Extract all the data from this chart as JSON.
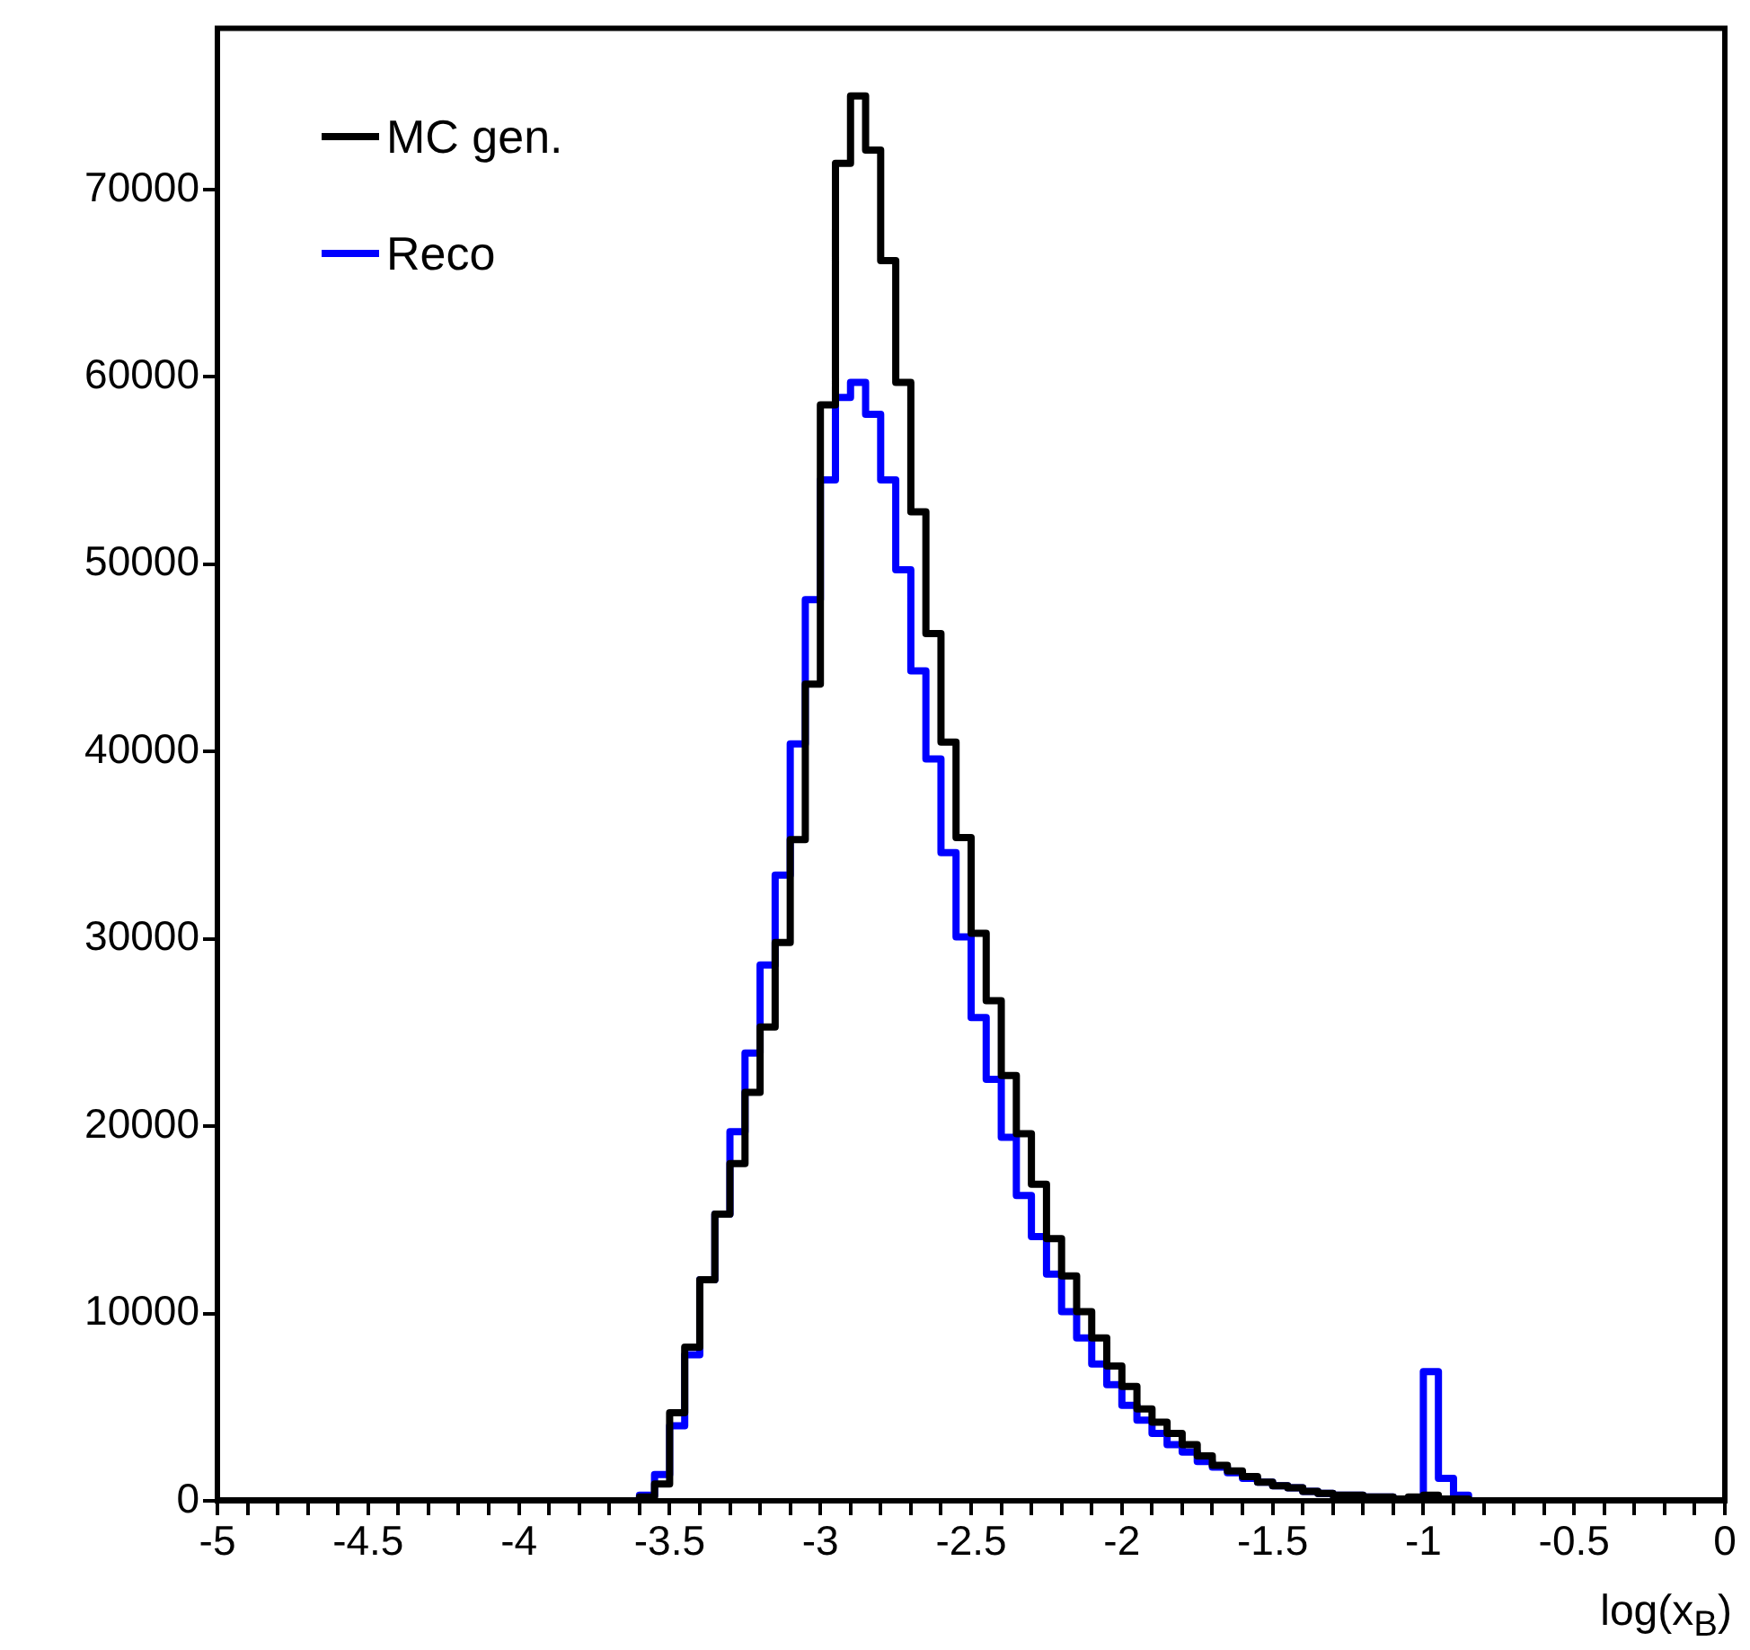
{
  "chart_data": {
    "type": "histogram",
    "xlabel": "log(x$_{B}$)",
    "bins": [
      -5,
      -4.95,
      -4.9,
      -4.85,
      -4.8,
      -4.75,
      -4.7,
      -4.65,
      -4.6,
      -4.55,
      -4.5,
      -4.45,
      -4.4,
      -4.35,
      -4.3,
      -4.25,
      -4.2,
      -4.15,
      -4.1,
      -4.05,
      -4,
      -3.95,
      -3.9,
      -3.85,
      -3.8,
      -3.75,
      -3.7,
      -3.65,
      -3.6,
      -3.55,
      -3.5,
      -3.45,
      -3.4,
      -3.35,
      -3.3,
      -3.25,
      -3.2,
      -3.15,
      -3.1,
      -3.05,
      -3,
      -2.95,
      -2.9,
      -2.85,
      -2.8,
      -2.75,
      -2.7,
      -2.65,
      -2.6,
      -2.55,
      -2.5,
      -2.45,
      -2.4,
      -2.35,
      -2.3,
      -2.25,
      -2.2,
      -2.15,
      -2.1,
      -2.05,
      -2,
      -1.95,
      -1.9,
      -1.85,
      -1.8,
      -1.75,
      -1.7,
      -1.65,
      -1.6,
      -1.55,
      -1.5,
      -1.45,
      -1.4,
      -1.35,
      -1.3,
      -1.25,
      -1.2,
      -1.15,
      -1.1,
      -1.05,
      -1,
      -0.95,
      -0.9,
      -0.85,
      -0.8,
      -0.75,
      -0.7,
      -0.65,
      -0.6,
      -0.55,
      -0.5,
      -0.45,
      -0.4,
      -0.35,
      -0.3,
      -0.25,
      -0.2,
      -0.15,
      -0.1,
      -0.05,
      0
    ],
    "series": [
      {
        "name": "MC gen.",
        "color": "#000000",
        "values": [
          0,
          0,
          0,
          0,
          0,
          0,
          0,
          0,
          0,
          0,
          0,
          0,
          0,
          0,
          0,
          0,
          0,
          0,
          0,
          0,
          0,
          0,
          0,
          0,
          0,
          0,
          0,
          0,
          200,
          900,
          4700,
          8200,
          11800,
          15300,
          18000,
          21800,
          25300,
          29800,
          35300,
          43600,
          58500,
          71400,
          75000,
          72100,
          66200,
          59700,
          52800,
          46300,
          40500,
          35400,
          30300,
          26700,
          22700,
          19600,
          16900,
          14000,
          12000,
          10100,
          8700,
          7200,
          6100,
          4900,
          4200,
          3600,
          3000,
          2400,
          1900,
          1600,
          1300,
          1000,
          800,
          700,
          500,
          400,
          300,
          300,
          200,
          200,
          100,
          200,
          300,
          100,
          100,
          0,
          0,
          0,
          0,
          0,
          0,
          0,
          0,
          0,
          0,
          0,
          0,
          0,
          0,
          0,
          0,
          0
        ]
      },
      {
        "name": "Reco",
        "color": "#0000ff",
        "values": [
          0,
          0,
          0,
          0,
          0,
          0,
          0,
          0,
          0,
          0,
          0,
          0,
          0,
          0,
          0,
          0,
          0,
          0,
          0,
          0,
          0,
          0,
          0,
          0,
          0,
          0,
          0,
          0,
          300,
          1400,
          4000,
          7800,
          11800,
          15300,
          19700,
          23900,
          28600,
          33400,
          40400,
          48100,
          54500,
          58900,
          59700,
          58000,
          54500,
          49700,
          44300,
          39600,
          34600,
          30100,
          25800,
          22500,
          19400,
          16300,
          14100,
          12100,
          10100,
          8700,
          7300,
          6200,
          5100,
          4300,
          3600,
          3000,
          2600,
          2100,
          1800,
          1500,
          1200,
          1000,
          800,
          700,
          500,
          400,
          300,
          300,
          200,
          200,
          100,
          100,
          6900,
          1200,
          300,
          0,
          0,
          0,
          0,
          0,
          0,
          0,
          0,
          0,
          0,
          0,
          0,
          0,
          0,
          0,
          0,
          0
        ]
      }
    ],
    "xlim": [
      -5,
      0
    ],
    "xticks": [
      -5,
      {
        "value": -4.9,
        "label": null
      },
      {
        "value": -4.8,
        "label": null
      },
      {
        "value": -4.7,
        "label": null
      },
      {
        "value": -4.6,
        "label": null
      },
      -4.5,
      {
        "value": -4.4,
        "label": null
      },
      {
        "value": -4.3,
        "label": null
      },
      {
        "value": -4.2,
        "label": null
      },
      {
        "value": -4.1,
        "label": null
      },
      -4,
      {
        "value": -3.9,
        "label": null
      },
      {
        "value": -3.8,
        "label": null
      },
      {
        "value": -3.7,
        "label": null
      },
      {
        "value": -3.6,
        "label": null
      },
      -3.5,
      {
        "value": -3.4,
        "label": null
      },
      {
        "value": -3.3,
        "label": null
      },
      {
        "value": -3.2,
        "label": null
      },
      {
        "value": -3.1,
        "label": null
      },
      -3,
      {
        "value": -2.9,
        "label": null
      },
      {
        "value": -2.8,
        "label": null
      },
      {
        "value": -2.7,
        "label": null
      },
      {
        "value": -2.6,
        "label": null
      },
      -2.5,
      {
        "value": -2.4,
        "label": null
      },
      {
        "value": -2.3,
        "label": null
      },
      {
        "value": -2.2,
        "label": null
      },
      {
        "value": -2.1,
        "label": null
      },
      -2,
      {
        "value": -1.9,
        "label": null
      },
      {
        "value": -1.8,
        "label": null
      },
      {
        "value": -1.7,
        "label": null
      },
      {
        "value": -1.6,
        "label": null
      },
      -1.5,
      {
        "value": -1.4,
        "label": null
      },
      {
        "value": -1.3,
        "label": null
      },
      {
        "value": -1.2,
        "label": null
      },
      {
        "value": -1.1,
        "label": null
      },
      -1,
      {
        "value": -0.9,
        "label": null
      },
      {
        "value": -0.8,
        "label": null
      },
      {
        "value": -0.7,
        "label": null
      },
      {
        "value": -0.6,
        "label": null
      },
      -0.5,
      {
        "value": -0.4,
        "label": null
      },
      {
        "value": -0.3,
        "label": null
      },
      {
        "value": -0.2,
        "label": null
      },
      {
        "value": -0.1,
        "label": null
      },
      0
    ],
    "ylim": [
      0,
      78600
    ],
    "yticks": [
      0,
      10000,
      20000,
      30000,
      40000,
      50000,
      60000,
      70000
    ],
    "grid": false,
    "legend": "top left"
  }
}
